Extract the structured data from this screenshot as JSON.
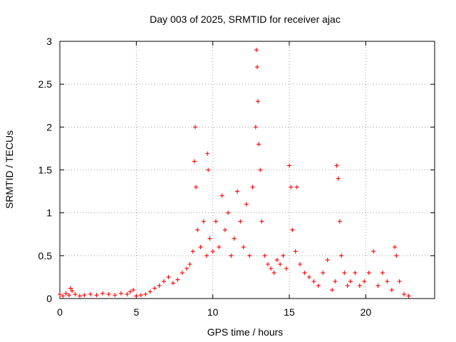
{
  "chart_data": {
    "type": "scatter",
    "title": "Day 003 of 2025, SRMTID for receiver ajac",
    "xlabel": "GPS time / hours",
    "ylabel": "SRMTID / TECUs",
    "xlim": [
      0,
      24.5
    ],
    "ylim": [
      0,
      3
    ],
    "x_ticks": [
      0,
      5,
      10,
      15,
      20
    ],
    "x_tick_labels": [
      "0",
      "5",
      "10",
      "15",
      "20"
    ],
    "y_ticks": [
      0,
      0.5,
      1,
      1.5,
      2,
      2.5,
      3
    ],
    "y_tick_labels": [
      "0",
      "0.5",
      "1",
      "1.5",
      "2",
      "2.5",
      "3"
    ],
    "grid": true,
    "marker": "plus",
    "series": [
      {
        "name": "SRMTID",
        "color": "#ff0000",
        "x": [
          0.0,
          0.2,
          0.4,
          0.6,
          0.7,
          0.8,
          1.0,
          1.3,
          1.6,
          2.0,
          2.4,
          2.8,
          3.2,
          3.6,
          4.0,
          4.4,
          4.6,
          4.8,
          5.0,
          5.3,
          5.6,
          5.9,
          6.2,
          6.5,
          6.8,
          7.1,
          7.4,
          7.7,
          8.0,
          8.3,
          8.5,
          8.7,
          8.8,
          8.85,
          8.9,
          9.0,
          9.2,
          9.4,
          9.6,
          9.65,
          9.7,
          9.8,
          10.0,
          10.2,
          10.4,
          10.6,
          10.8,
          11.0,
          11.2,
          11.4,
          11.6,
          11.8,
          12.0,
          12.2,
          12.4,
          12.6,
          12.8,
          12.85,
          12.9,
          12.95,
          13.0,
          13.1,
          13.2,
          13.4,
          13.6,
          13.8,
          14.0,
          14.2,
          14.4,
          14.6,
          14.8,
          15.0,
          15.1,
          15.2,
          15.4,
          15.5,
          15.7,
          16.0,
          16.3,
          16.6,
          16.9,
          17.2,
          17.5,
          17.8,
          18.0,
          18.1,
          18.2,
          18.3,
          18.4,
          18.6,
          18.8,
          19.0,
          19.3,
          19.6,
          19.9,
          20.2,
          20.5,
          20.8,
          21.1,
          21.4,
          21.7,
          21.9,
          22.0,
          22.2,
          22.5,
          22.8
        ],
        "y": [
          0.05,
          0.03,
          0.06,
          0.04,
          0.12,
          0.09,
          0.05,
          0.03,
          0.04,
          0.05,
          0.04,
          0.06,
          0.05,
          0.04,
          0.06,
          0.05,
          0.08,
          0.1,
          0.03,
          0.04,
          0.05,
          0.08,
          0.12,
          0.15,
          0.2,
          0.25,
          0.18,
          0.22,
          0.3,
          0.35,
          0.4,
          0.55,
          1.6,
          2.0,
          1.3,
          0.8,
          0.6,
          0.9,
          0.5,
          1.69,
          1.5,
          0.7,
          0.55,
          0.9,
          0.6,
          1.2,
          0.8,
          1.0,
          0.5,
          0.7,
          1.25,
          0.9,
          0.6,
          1.1,
          0.5,
          1.3,
          2.0,
          2.9,
          2.7,
          2.3,
          1.8,
          1.5,
          0.9,
          0.5,
          0.4,
          0.35,
          0.3,
          0.45,
          0.4,
          0.5,
          0.35,
          1.55,
          1.3,
          0.8,
          0.55,
          1.3,
          0.4,
          0.3,
          0.25,
          0.2,
          0.15,
          0.3,
          0.45,
          0.1,
          0.2,
          1.55,
          1.4,
          0.9,
          0.5,
          0.3,
          0.15,
          0.2,
          0.3,
          0.15,
          0.2,
          0.3,
          0.55,
          0.15,
          0.3,
          0.2,
          0.1,
          0.6,
          0.5,
          0.2,
          0.05,
          0.03
        ]
      }
    ]
  }
}
